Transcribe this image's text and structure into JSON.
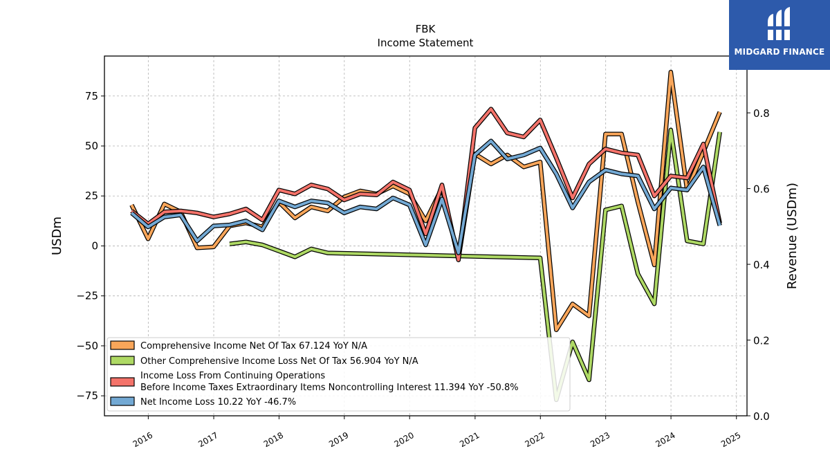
{
  "header": {
    "ticker": "FBK",
    "subtitle": "Income Statement"
  },
  "brand": {
    "name": "MIDGARD FINANCE",
    "background_color": "#2d5aab",
    "logo_icon": "midgard-logo-icon"
  },
  "chart_data": {
    "type": "line",
    "title": "FBK",
    "subtitle": "Income Statement",
    "ylabel": "USDm",
    "ylabel_right": "Revenue (USDm)",
    "ylim": [
      -85,
      95
    ],
    "ylim_right": [
      0.0,
      0.95
    ],
    "xlim": [
      "2015-05-01",
      "2025-03-01"
    ],
    "yticks": [
      75,
      50,
      25,
      0,
      -25,
      -50,
      -75
    ],
    "ytick_labels": [
      "75",
      "50",
      "25",
      "0",
      "−25",
      "−50",
      "−75"
    ],
    "yticks_right": [
      0.0,
      0.2,
      0.4,
      0.6,
      0.8
    ],
    "ytick_labels_right": [
      "0.0",
      "0.2",
      "0.4",
      "0.6",
      "0.8"
    ],
    "xticks": [
      "2016",
      "2017",
      "2018",
      "2019",
      "2020",
      "2021",
      "2022",
      "2023",
      "2024",
      "2025"
    ],
    "grid": true,
    "legend_position": "lower-left",
    "series": [
      {
        "name": "Comprehensive Income Net Of Tax",
        "legend_label": "Comprehensive Income Net Of Tax  67.124 YoY N/A",
        "color": "#f9a65a",
        "points": [
          [
            "2015-09-30",
            20.5
          ],
          [
            "2015-12-31",
            3.5
          ],
          [
            "2016-03-31",
            21
          ],
          [
            "2016-06-30",
            17
          ],
          [
            "2016-09-30",
            -1
          ],
          [
            "2016-12-31",
            -0.5
          ],
          [
            "2017-03-31",
            10
          ],
          [
            "2017-06-30",
            11.5
          ],
          [
            "2017-09-30",
            9.5
          ],
          [
            "2017-12-31",
            22
          ],
          [
            "2018-03-31",
            14
          ],
          [
            "2018-06-30",
            19.5
          ],
          [
            "2018-09-30",
            17.5
          ],
          [
            "2018-12-31",
            24.5
          ],
          [
            "2019-03-31",
            27.5
          ],
          [
            "2019-06-30",
            26
          ],
          [
            "2019-09-30",
            30
          ],
          [
            "2019-12-31",
            26
          ],
          [
            "2020-03-31",
            12.5
          ],
          [
            "2020-06-30",
            29
          ],
          [
            "2020-09-30",
            -6.5
          ],
          [
            "2020-12-31",
            46
          ],
          [
            "2021-03-31",
            41
          ],
          [
            "2021-06-30",
            45.5
          ],
          [
            "2021-09-30",
            39.5
          ],
          [
            "2021-12-31",
            42
          ],
          [
            "2022-03-31",
            -42
          ],
          [
            "2022-06-30",
            -29
          ],
          [
            "2022-09-30",
            -35
          ],
          [
            "2022-12-31",
            56
          ],
          [
            "2023-03-31",
            56
          ],
          [
            "2023-06-30",
            22
          ],
          [
            "2023-09-30",
            -9.5
          ],
          [
            "2023-12-31",
            87
          ],
          [
            "2024-03-31",
            28
          ],
          [
            "2024-06-30",
            47
          ],
          [
            "2024-09-30",
            67
          ]
        ]
      },
      {
        "name": "Other Comprehensive Income Loss Net Of Tax",
        "legend_label": "Other Comprehensive Income Loss Net Of Tax  56.904 YoY N/A",
        "color": "#aed964",
        "points": [
          [
            "2017-03-31",
            1
          ],
          [
            "2017-06-30",
            2
          ],
          [
            "2017-09-30",
            0.5
          ],
          [
            "2017-12-31",
            -2.5
          ],
          [
            "2018-03-31",
            -5.5
          ],
          [
            "2018-06-30",
            -1.5
          ],
          [
            "2018-09-30",
            -3.5
          ],
          [
            "2021-12-31",
            -6
          ],
          [
            "2022-03-31",
            -77
          ],
          [
            "2022-06-30",
            -48
          ],
          [
            "2022-09-30",
            -67
          ],
          [
            "2022-12-31",
            18
          ],
          [
            "2023-03-31",
            20
          ],
          [
            "2023-06-30",
            -14
          ],
          [
            "2023-09-30",
            -29
          ],
          [
            "2023-12-31",
            58
          ],
          [
            "2024-03-31",
            2.5
          ],
          [
            "2024-06-30",
            1
          ],
          [
            "2024-09-30",
            57
          ]
        ]
      },
      {
        "name": "Income Loss From Continuing Operations Before Income Taxes Extraordinary Items Noncontrolling Interest",
        "legend_label_line1": "Income Loss From Continuing Operations",
        "legend_label_line2": "Before Income Taxes Extraordinary Items Noncontrolling Interest  11.394 YoY -50.8%",
        "color": "#f4736a",
        "points": [
          [
            "2015-09-30",
            17.5
          ],
          [
            "2015-12-31",
            11
          ],
          [
            "2016-03-31",
            17
          ],
          [
            "2016-06-30",
            17.5
          ],
          [
            "2016-09-30",
            16.5
          ],
          [
            "2016-12-31",
            14.5
          ],
          [
            "2017-03-31",
            16
          ],
          [
            "2017-06-30",
            18.5
          ],
          [
            "2017-09-30",
            13
          ],
          [
            "2017-12-31",
            28
          ],
          [
            "2018-03-31",
            26
          ],
          [
            "2018-06-30",
            30.5
          ],
          [
            "2018-09-30",
            28.5
          ],
          [
            "2018-12-31",
            23
          ],
          [
            "2019-03-31",
            26
          ],
          [
            "2019-06-30",
            25.5
          ],
          [
            "2019-09-30",
            32
          ],
          [
            "2019-12-31",
            28
          ],
          [
            "2020-03-31",
            6
          ],
          [
            "2020-06-30",
            30.5
          ],
          [
            "2020-09-30",
            -7
          ],
          [
            "2020-12-31",
            59
          ],
          [
            "2021-03-31",
            68.5
          ],
          [
            "2021-06-30",
            56.5
          ],
          [
            "2021-09-30",
            54.5
          ],
          [
            "2021-12-31",
            63
          ],
          [
            "2022-03-31",
            44
          ],
          [
            "2022-06-30",
            24
          ],
          [
            "2022-09-30",
            41
          ],
          [
            "2022-12-31",
            48.5
          ],
          [
            "2023-03-31",
            46.5
          ],
          [
            "2023-06-30",
            45.5
          ],
          [
            "2023-09-30",
            25
          ],
          [
            "2023-12-31",
            35
          ],
          [
            "2024-03-31",
            34
          ],
          [
            "2024-06-30",
            51
          ],
          [
            "2024-09-30",
            11.4
          ]
        ]
      },
      {
        "name": "Net Income Loss",
        "legend_label": "Net Income Loss  10.22 YoY -46.7%",
        "color": "#73a9d4",
        "points": [
          [
            "2015-09-30",
            16.5
          ],
          [
            "2015-12-31",
            9.5
          ],
          [
            "2016-03-31",
            14.5
          ],
          [
            "2016-06-30",
            15.5
          ],
          [
            "2016-09-30",
            2.5
          ],
          [
            "2016-12-31",
            10
          ],
          [
            "2017-03-31",
            10.5
          ],
          [
            "2017-06-30",
            12.5
          ],
          [
            "2017-09-30",
            8
          ],
          [
            "2017-12-31",
            22.5
          ],
          [
            "2018-03-31",
            19.5
          ],
          [
            "2018-06-30",
            22.5
          ],
          [
            "2018-09-30",
            21.5
          ],
          [
            "2018-12-31",
            16.5
          ],
          [
            "2019-03-31",
            19.5
          ],
          [
            "2019-06-30",
            18.5
          ],
          [
            "2019-09-30",
            24
          ],
          [
            "2019-12-31",
            20.5
          ],
          [
            "2020-03-31",
            0.5
          ],
          [
            "2020-06-30",
            23.5
          ],
          [
            "2020-09-30",
            -3.5
          ],
          [
            "2020-12-31",
            45.5
          ],
          [
            "2021-03-31",
            52.5
          ],
          [
            "2021-06-30",
            43.5
          ],
          [
            "2021-09-30",
            45.5
          ],
          [
            "2021-12-31",
            49
          ],
          [
            "2022-03-31",
            36
          ],
          [
            "2022-06-30",
            19
          ],
          [
            "2022-09-30",
            32
          ],
          [
            "2022-12-31",
            38
          ],
          [
            "2023-03-31",
            36
          ],
          [
            "2023-06-30",
            35
          ],
          [
            "2023-09-30",
            18.5
          ],
          [
            "2023-12-31",
            29
          ],
          [
            "2024-03-31",
            28
          ],
          [
            "2024-06-30",
            39.5
          ],
          [
            "2024-09-30",
            10.2
          ]
        ]
      }
    ]
  }
}
